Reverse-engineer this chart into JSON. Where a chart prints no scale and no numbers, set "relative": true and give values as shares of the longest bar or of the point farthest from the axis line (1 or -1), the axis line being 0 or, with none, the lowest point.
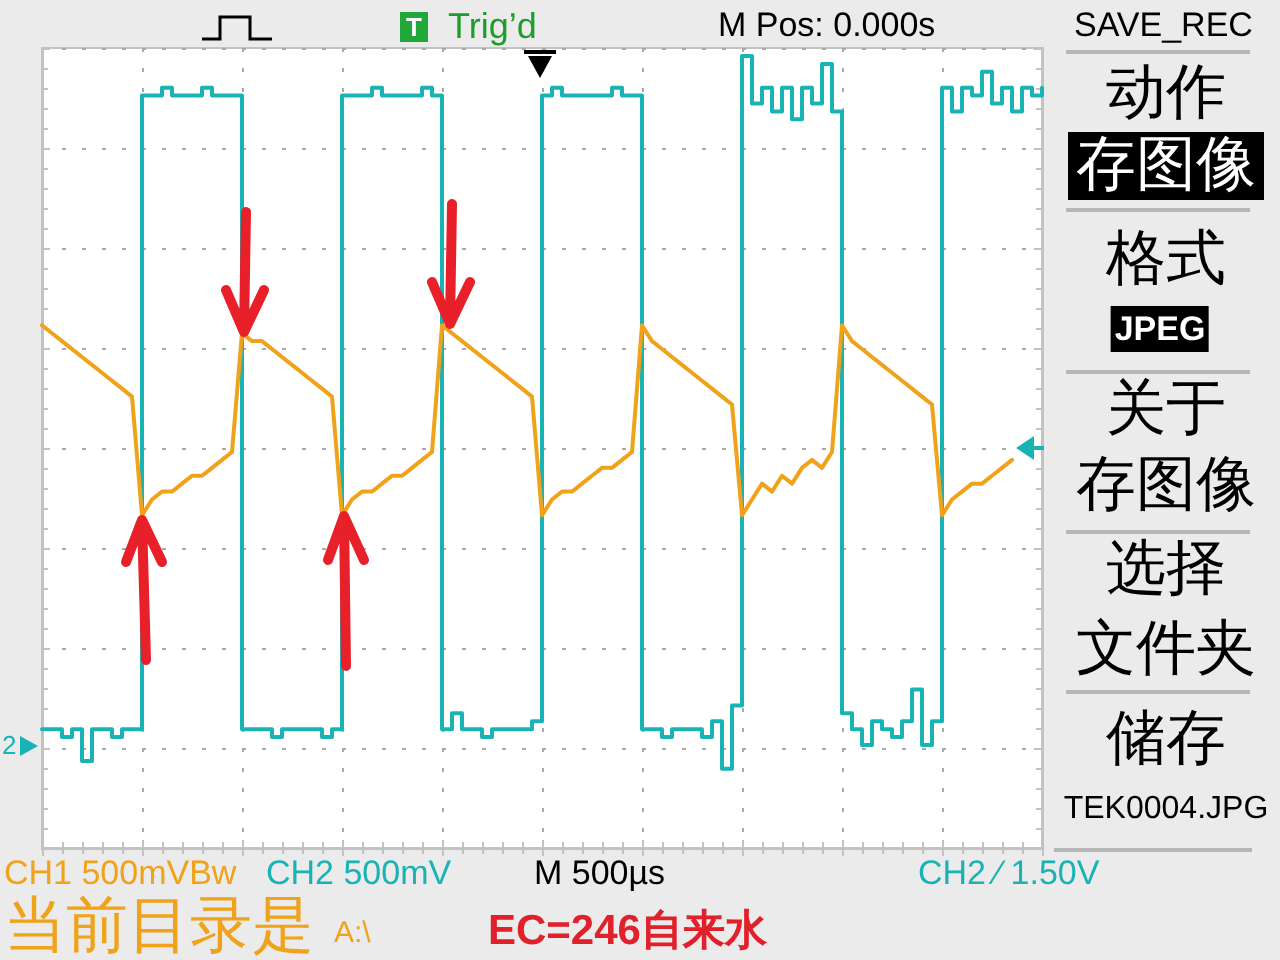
{
  "chart_data": {
    "type": "line",
    "relative": true,
    "grid": true,
    "categories": [
      null,
      null,
      null,
      null,
      null,
      null,
      null,
      null,
      null,
      null,
      null,
      null,
      null,
      null,
      null,
      null,
      null,
      null,
      null,
      null,
      null,
      null,
      null,
      null,
      null,
      null,
      null,
      null,
      null,
      null,
      null,
      null,
      null,
      null,
      null,
      null,
      null,
      null,
      null,
      null,
      null,
      null,
      null,
      null,
      null,
      null,
      null,
      null,
      null,
      null,
      null,
      null,
      null,
      null,
      null,
      null,
      null,
      null,
      null,
      null,
      null,
      null,
      null,
      null,
      null,
      null,
      null,
      null,
      null,
      null,
      null,
      null,
      null,
      null,
      null,
      null,
      null,
      null,
      null,
      null,
      null,
      null,
      null,
      null,
      null,
      null,
      null,
      null,
      null,
      null,
      null,
      null,
      null,
      null,
      null,
      null,
      null,
      null,
      null,
      null,
      null
    ],
    "series": [
      {
        "type": "step",
        "color": "#19b3b6",
        "values": [
          0.15,
          0.15,
          0.14,
          0.15,
          0.11,
          0.15,
          0.15,
          0.14,
          0.15,
          0.15,
          0.95,
          0.95,
          0.96,
          0.95,
          0.95,
          0.95,
          0.96,
          0.95,
          0.95,
          0.95,
          0.15,
          0.15,
          0.15,
          0.14,
          0.15,
          0.15,
          0.15,
          0.15,
          0.14,
          0.15,
          0.95,
          0.95,
          0.95,
          0.96,
          0.95,
          0.95,
          0.95,
          0.95,
          0.96,
          0.95,
          0.15,
          0.17,
          0.15,
          0.15,
          0.14,
          0.15,
          0.15,
          0.15,
          0.15,
          0.16,
          0.95,
          0.96,
          0.95,
          0.95,
          0.95,
          0.95,
          0.95,
          0.96,
          0.95,
          0.95,
          0.15,
          0.15,
          0.14,
          0.15,
          0.15,
          0.15,
          0.14,
          0.16,
          0.1,
          0.18,
          1.0,
          0.94,
          0.96,
          0.93,
          0.96,
          0.92,
          0.96,
          0.94,
          0.99,
          0.93,
          0.17,
          0.15,
          0.13,
          0.16,
          0.15,
          0.14,
          0.16,
          0.2,
          0.13,
          0.16,
          0.96,
          0.93,
          0.96,
          0.95,
          0.98,
          0.94,
          0.96,
          0.93,
          0.96,
          0.95,
          0.96
        ]
      },
      {
        "color": "#f0a31a",
        "values": [
          0.66,
          0.65,
          0.64,
          0.63,
          0.62,
          0.61,
          0.6,
          0.59,
          0.58,
          0.57,
          0.42,
          0.44,
          0.45,
          0.45,
          0.46,
          0.47,
          0.47,
          0.48,
          0.49,
          0.5,
          0.65,
          0.64,
          0.64,
          0.63,
          0.62,
          0.61,
          0.6,
          0.59,
          0.58,
          0.57,
          0.42,
          0.44,
          0.45,
          0.45,
          0.46,
          0.47,
          0.47,
          0.48,
          0.49,
          0.5,
          0.66,
          0.65,
          0.64,
          0.63,
          0.62,
          0.61,
          0.6,
          0.59,
          0.58,
          0.57,
          0.42,
          0.44,
          0.45,
          0.45,
          0.46,
          0.47,
          0.48,
          0.48,
          0.49,
          0.5,
          0.66,
          0.64,
          0.63,
          0.62,
          0.61,
          0.6,
          0.59,
          0.58,
          0.57,
          0.56,
          0.42,
          0.44,
          0.46,
          0.45,
          0.47,
          0.46,
          0.48,
          0.49,
          0.48,
          0.5,
          0.66,
          0.64,
          0.63,
          0.62,
          0.61,
          0.6,
          0.59,
          0.58,
          0.57,
          0.56,
          0.42,
          0.44,
          0.45,
          0.46,
          0.46,
          0.47,
          0.48,
          0.49,
          null,
          null,
          null
        ]
      }
    ],
    "annotations": [
      "T",
      "Trig’d",
      "M Pos: 0.000s",
      "SAVE_REC",
      "动作",
      "存图像",
      "格式",
      "JPEG",
      "关于",
      "存图像",
      "选择",
      "文件夹",
      "储存",
      "TEK0004.JPG",
      "CH1 500mVBw",
      "CH2 500mV",
      "M 500µs",
      "CH2 ∕ 1.50V",
      "当前目录是",
      "A:\\",
      "EC=246自来水",
      "2"
    ]
  }
}
